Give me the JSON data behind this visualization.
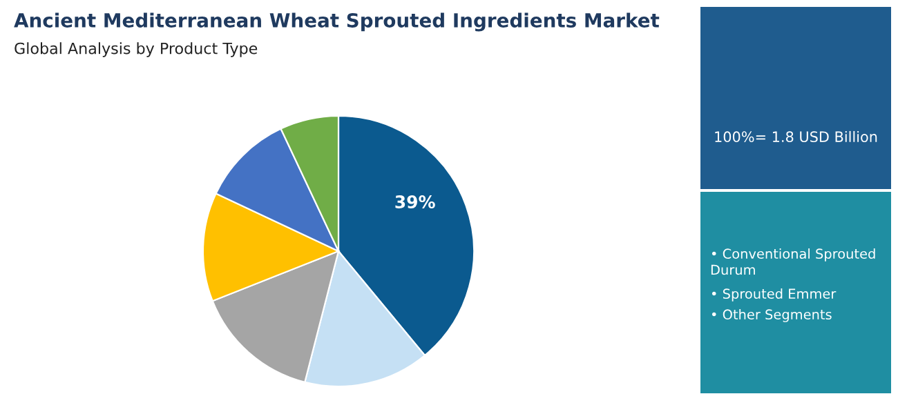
{
  "chart_data": {
    "type": "pie",
    "title": "Ancient Mediterranean Wheat Sprouted Ingredients Market",
    "subtitle": "Global Analysis by Product Type",
    "categories": [
      null,
      null,
      null,
      null,
      null,
      null
    ],
    "values": [
      39,
      15,
      15,
      13,
      11,
      7
    ],
    "colors": [
      "#0b5a8f",
      "#c5e0f4",
      "#a5a5a5",
      "#ffc000",
      "#4472c4",
      "#70ad47"
    ],
    "value_labels": [
      "39%",
      null,
      null,
      null,
      null,
      null
    ],
    "annotations": [
      "100%= 1.8 USD Billion",
      "• Conventional Sprouted\nDurum",
      "• Sprouted Emmer",
      "• Other Segments"
    ]
  }
}
